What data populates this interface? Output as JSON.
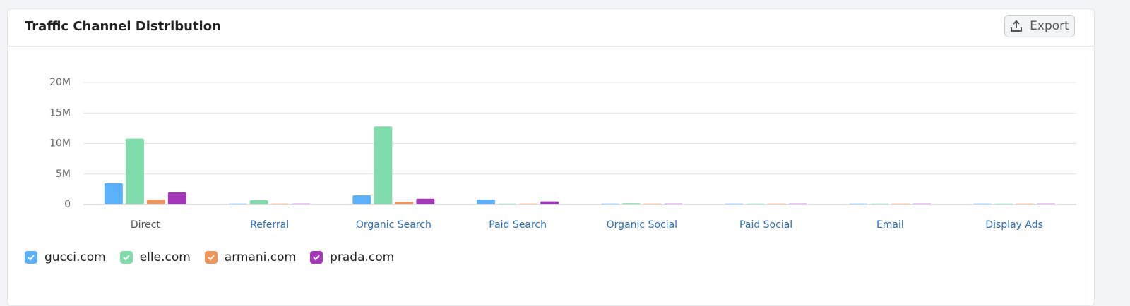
{
  "export_label": "Export",
  "chart_data": {
    "type": "bar",
    "title": "Traffic Channel Distribution",
    "categories": [
      "Direct",
      "Referral",
      "Organic Search",
      "Paid Search",
      "Organic Social",
      "Paid Social",
      "Email",
      "Display Ads"
    ],
    "series": [
      {
        "name": "gucci.com",
        "color": "#5bb0fa",
        "values": [
          3500000,
          150000,
          1500000,
          800000,
          150000,
          150000,
          150000,
          150000
        ]
      },
      {
        "name": "elle.com",
        "color": "#80dcaa",
        "values": [
          10800000,
          700000,
          12800000,
          150000,
          200000,
          150000,
          150000,
          150000
        ]
      },
      {
        "name": "armani.com",
        "color": "#f0965a",
        "values": [
          800000,
          150000,
          450000,
          150000,
          150000,
          150000,
          150000,
          150000
        ]
      },
      {
        "name": "prada.com",
        "color": "#a338b8",
        "values": [
          2000000,
          150000,
          950000,
          500000,
          150000,
          150000,
          150000,
          150000
        ]
      }
    ],
    "ylim": [
      0,
      20000000
    ],
    "yticks": [
      0,
      {
        "value": 5000000,
        "label": "5M"
      },
      {
        "value": 10000000,
        "label": "10M"
      },
      {
        "value": 15000000,
        "label": "15M"
      },
      {
        "value": 20000000,
        "label": "20M"
      }
    ],
    "grid": true
  }
}
